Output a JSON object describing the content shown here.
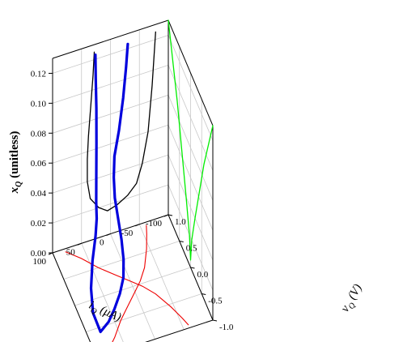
{
  "chart_data": {
    "type": "line",
    "projection": "3d",
    "axes": {
      "x": {
        "label": "iQ (μA)",
        "label_symbol": "i",
        "label_subscript": "Q",
        "label_unit": "(μA)",
        "ticks": [
          -100,
          -50,
          0,
          50,
          100
        ],
        "range": [
          -100,
          100
        ]
      },
      "y": {
        "label": "vQ (V)",
        "label_symbol": "v",
        "label_subscript": "Q",
        "label_unit": "(V)",
        "ticks": [
          -1.0,
          -0.5,
          0.0,
          0.5,
          1.0
        ],
        "tick_labels": [
          "-1.0",
          "-0.5",
          "0.0",
          "0.5",
          "1.0"
        ],
        "range": [
          -1.0,
          1.0
        ]
      },
      "z": {
        "label": "xQ (unitless)",
        "label_symbol": "x",
        "label_subscript": "Q",
        "label_unit": "(unitless)",
        "ticks": [
          0.0,
          0.02,
          0.04,
          0.06,
          0.08,
          0.1,
          0.12
        ],
        "tick_labels": [
          "0.00",
          "0.02",
          "0.04",
          "0.06",
          "0.08",
          "0.10",
          "0.12"
        ],
        "range": [
          0.0,
          0.13
        ]
      }
    },
    "grid": true,
    "series": [
      {
        "role": "3d-curve",
        "color": "#0000dd",
        "points": [
          [
            -28,
            0.95,
            0.125
          ],
          [
            -25,
            0.95,
            0.11
          ],
          [
            -20,
            0.95,
            0.09
          ],
          [
            -12,
            0.93,
            0.07
          ],
          [
            -3,
            0.9,
            0.055
          ],
          [
            2,
            0.8,
            0.045
          ],
          [
            4,
            0.7,
            0.035
          ],
          [
            5,
            0.5,
            0.026
          ],
          [
            6,
            0.35,
            0.02
          ],
          [
            10,
            0.15,
            0.014
          ],
          [
            18,
            -0.05,
            0.01
          ],
          [
            30,
            -0.2,
            0.006
          ],
          [
            45,
            -0.35,
            0.003
          ],
          [
            60,
            -0.48,
            0.001
          ],
          [
            78,
            -0.58,
            0.0
          ],
          [
            80,
            -0.3,
            0.003
          ],
          [
            72,
            0.0,
            0.008
          ],
          [
            58,
            0.3,
            0.014
          ],
          [
            45,
            0.5,
            0.022
          ],
          [
            40,
            0.58,
            0.03
          ],
          [
            40,
            0.6,
            0.04
          ],
          [
            38,
            0.65,
            0.055
          ],
          [
            35,
            0.72,
            0.075
          ],
          [
            32,
            0.8,
            0.095
          ],
          [
            30,
            0.88,
            0.112
          ],
          [
            28,
            0.95,
            0.125
          ]
        ]
      },
      {
        "role": "projection-xz",
        "color": "#000000",
        "points": [
          [
            -78,
            0.125
          ],
          [
            -72,
            0.09
          ],
          [
            -65,
            0.06
          ],
          [
            -55,
            0.04
          ],
          [
            -45,
            0.028
          ],
          [
            -30,
            0.022
          ],
          [
            -12,
            0.018
          ],
          [
            5,
            0.016
          ],
          [
            20,
            0.02
          ],
          [
            35,
            0.028
          ],
          [
            40,
            0.04
          ],
          [
            40,
            0.055
          ],
          [
            38,
            0.07
          ],
          [
            34,
            0.09
          ],
          [
            30,
            0.11
          ],
          [
            28,
            0.125
          ]
        ]
      },
      {
        "role": "projection-yz",
        "color": "#00ee00",
        "points": [
          [
            -1.0,
            0.13
          ],
          [
            -0.8,
            0.11
          ],
          [
            -0.6,
            0.09
          ],
          [
            -0.4,
            0.065
          ],
          [
            -0.2,
            0.04
          ],
          [
            -0.05,
            0.02
          ],
          [
            0.0,
            0.005
          ],
          [
            0.05,
            0.02
          ],
          [
            0.2,
            0.04
          ],
          [
            0.4,
            0.065
          ],
          [
            0.6,
            0.09
          ],
          [
            0.8,
            0.11
          ],
          [
            1.0,
            0.13
          ]
        ]
      },
      {
        "role": "projection-xy",
        "color": "#ee0000",
        "points": [
          [
            -60,
            0.95
          ],
          [
            -55,
            0.8
          ],
          [
            -45,
            0.55
          ],
          [
            -30,
            0.25
          ],
          [
            -15,
            0.05
          ],
          [
            0,
            -0.1
          ],
          [
            20,
            -0.3
          ],
          [
            40,
            -0.5
          ],
          [
            60,
            -0.75
          ],
          [
            80,
            -0.95
          ],
          [
            80,
            0.95
          ],
          [
            60,
            0.75
          ],
          [
            40,
            0.5
          ],
          [
            20,
            0.3
          ],
          [
            0,
            0.1
          ],
          [
            -15,
            -0.05
          ],
          [
            -30,
            -0.25
          ],
          [
            -45,
            -0.55
          ],
          [
            -55,
            -0.8
          ],
          [
            -60,
            -0.95
          ]
        ]
      }
    ]
  }
}
